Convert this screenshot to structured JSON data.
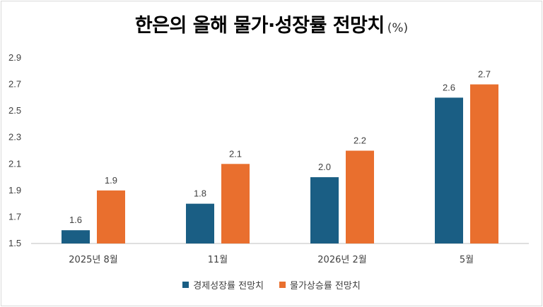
{
  "colors": {
    "series1": "#1a5e84",
    "series2": "#e96f2e",
    "axis": "#bfbfbf"
  },
  "chart_data": {
    "type": "bar",
    "title": "한은의 올해 물가·성장률 전망치",
    "unit": "(%)",
    "categories": [
      "2025년 8월",
      "11월",
      "2026년 2월",
      "5월"
    ],
    "series": [
      {
        "name": "경제성장률 전망치",
        "values": [
          1.6,
          1.8,
          2.0,
          2.6
        ],
        "labels": [
          "1.6",
          "1.8",
          "2.0",
          "2.6"
        ]
      },
      {
        "name": "물가상승률 전망치",
        "values": [
          1.9,
          2.1,
          2.2,
          2.7
        ],
        "labels": [
          "1.9",
          "2.1",
          "2.2",
          "2.7"
        ]
      }
    ],
    "y_ticks": [
      "1.5",
      "1.7",
      "1.9",
      "2.1",
      "2.3",
      "2.5",
      "2.7",
      "2.9"
    ],
    "ylim": [
      1.5,
      2.9
    ],
    "grid": false,
    "legend_position": "bottom"
  }
}
